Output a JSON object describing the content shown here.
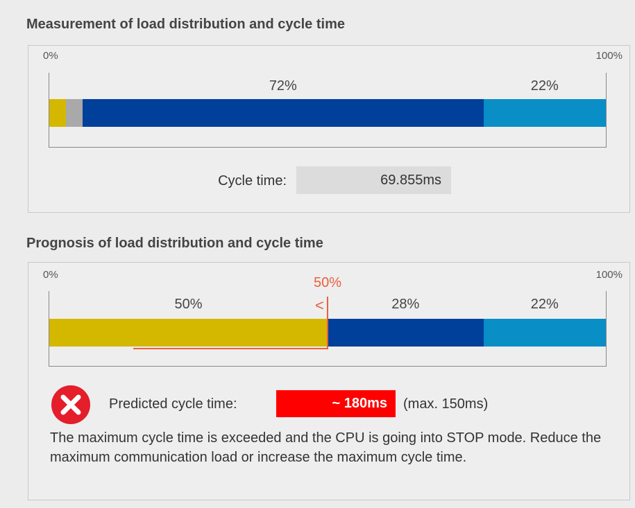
{
  "measurement": {
    "title": "Measurement of load distribution and cycle time",
    "scale_min": "0%",
    "scale_max": "100%",
    "segments": [
      {
        "value": 3,
        "color": "#d4b800"
      },
      {
        "value": 3,
        "color": "#a9a9a9"
      },
      {
        "value": 72,
        "label": "72%",
        "color": "#003f9a"
      },
      {
        "value": 22,
        "label": "22%",
        "color": "#0a8ec6"
      }
    ],
    "cycle_time_label": "Cycle time:",
    "cycle_time_value": "69.855ms"
  },
  "prognosis": {
    "title": "Prognosis of load distribution and cycle time",
    "scale_min": "0%",
    "scale_max": "100%",
    "marker": {
      "value": 50,
      "label": "50%",
      "symbol": "<",
      "color": "#e8603c"
    },
    "segments": [
      {
        "value": 50,
        "label": "50%",
        "color": "#d4b800"
      },
      {
        "value": 28,
        "label": "28%",
        "color": "#003f9a"
      },
      {
        "value": 22,
        "label": "22%",
        "color": "#0a8ec6"
      }
    ],
    "predicted_label": "Predicted cycle time:",
    "predicted_value": "~ 180ms",
    "max_note": "(max. 150ms)",
    "message": "The maximum cycle time is exceeded and the CPU is going into STOP mode. Reduce the maximum communication load or increase the maximum cycle time."
  }
}
